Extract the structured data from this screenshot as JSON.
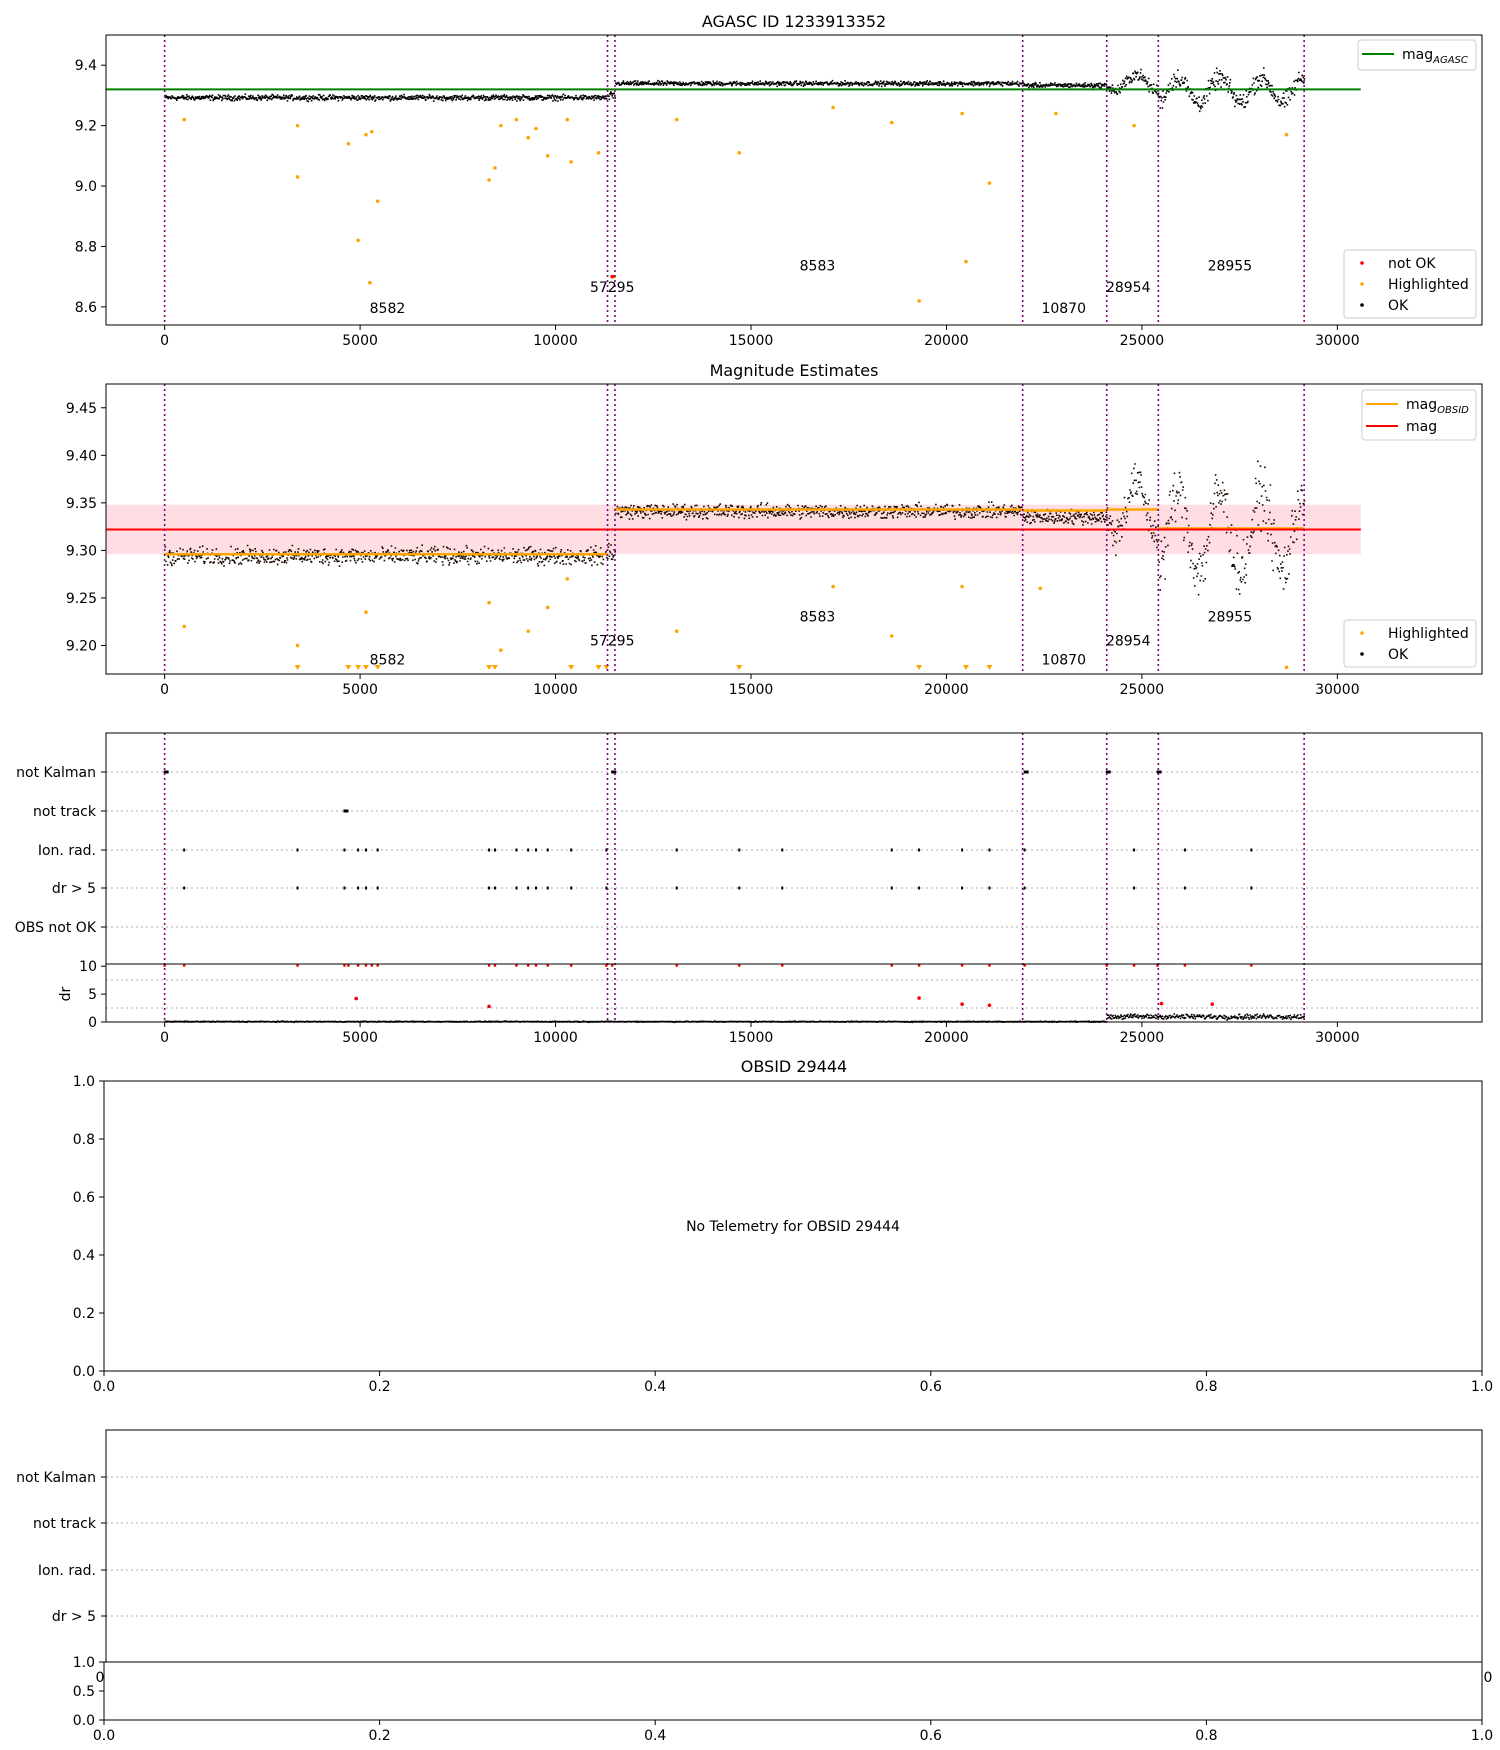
{
  "chart_data": [
    {
      "type": "scatter",
      "title": "AGASC ID 1233913352",
      "xlabel": "",
      "ylabel": "",
      "xlim": [
        -1500,
        33700
      ],
      "ylim": [
        8.54,
        9.5
      ],
      "xticks": [
        0,
        5000,
        10000,
        15000,
        20000,
        25000,
        30000
      ],
      "yticks": [
        8.6,
        8.8,
        9.0,
        9.2,
        9.4
      ],
      "ytick_labels": [
        "8.6",
        "8.8",
        "9.0",
        "9.2",
        "9.4"
      ],
      "obs_boundaries": [
        0,
        11330,
        11520,
        21950,
        24100,
        25420,
        29150
      ],
      "obs_labels": [
        {
          "text": "8582",
          "x": 5700,
          "y": 8.58
        },
        {
          "text": "57295",
          "x": 11450,
          "y": 8.65
        },
        {
          "text": "8583",
          "x": 16700,
          "y": 8.72
        },
        {
          "text": "10870",
          "x": 23000,
          "y": 8.58
        },
        {
          "text": "28954",
          "x": 24650,
          "y": 8.65
        },
        {
          "text": "28955",
          "x": 27250,
          "y": 8.72
        }
      ],
      "reference_line": {
        "name": "mag_AGASC",
        "y": 9.32,
        "x_range": [
          -1500,
          30600
        ],
        "color": "#008000"
      },
      "ok_band_segments": [
        {
          "x0": 0,
          "x1": 11330,
          "center": 9.295,
          "spread": 0.013
        },
        {
          "x0": 11330,
          "x1": 11520,
          "center": 9.3,
          "spread": 0.02
        },
        {
          "x0": 11520,
          "x1": 21950,
          "center": 9.342,
          "spread": 0.011
        },
        {
          "x0": 21950,
          "x1": 24100,
          "center": 9.336,
          "spread": 0.011
        },
        {
          "x0": 24100,
          "x1": 25420,
          "center": 9.345,
          "spread": 0.03
        },
        {
          "x0": 25420,
          "x1": 29150,
          "center": 9.32,
          "spread": 0.045
        }
      ],
      "highlighted_points": [
        [
          500,
          9.22
        ],
        [
          3400,
          9.2
        ],
        [
          3400,
          9.03
        ],
        [
          4700,
          9.14
        ],
        [
          4950,
          8.82
        ],
        [
          5150,
          9.17
        ],
        [
          5250,
          8.68
        ],
        [
          5300,
          9.18
        ],
        [
          5450,
          8.95
        ],
        [
          8300,
          9.02
        ],
        [
          8450,
          9.06
        ],
        [
          8600,
          9.2
        ],
        [
          9000,
          9.22
        ],
        [
          9300,
          9.16
        ],
        [
          9500,
          9.19
        ],
        [
          9800,
          9.1
        ],
        [
          10300,
          9.22
        ],
        [
          10400,
          9.08
        ],
        [
          11100,
          9.11
        ],
        [
          11500,
          8.7
        ],
        [
          13100,
          9.22
        ],
        [
          14700,
          9.11
        ],
        [
          17100,
          9.26
        ],
        [
          18600,
          9.21
        ],
        [
          19300,
          8.62
        ],
        [
          20400,
          9.24
        ],
        [
          20500,
          8.75
        ],
        [
          21100,
          9.01
        ],
        [
          22800,
          9.24
        ],
        [
          24800,
          9.2
        ],
        [
          28700,
          9.17
        ]
      ],
      "not_ok_points": [
        [
          11450,
          8.7
        ]
      ],
      "legend": [
        {
          "name": "mag",
          "sub": "AGASC",
          "color": "#008000",
          "kind": "line"
        },
        {
          "name": "not OK",
          "color": "#ff0000",
          "kind": "dot"
        },
        {
          "name": "Highlighted",
          "color": "#ffa500",
          "kind": "dot"
        },
        {
          "name": "OK",
          "color": "#000000",
          "kind": "dot"
        }
      ],
      "legend_placement": [
        "top-right",
        "bottom-right"
      ]
    },
    {
      "type": "scatter",
      "title": "Magnitude Estimates",
      "xlabel": "",
      "ylabel": "",
      "xlim": [
        -1500,
        33700
      ],
      "ylim": [
        9.17,
        9.475
      ],
      "xticks": [
        0,
        5000,
        10000,
        15000,
        20000,
        25000,
        30000
      ],
      "yticks": [
        9.2,
        9.25,
        9.3,
        9.35,
        9.4,
        9.45
      ],
      "ytick_labels": [
        "9.20",
        "9.25",
        "9.30",
        "9.35",
        "9.40",
        "9.45"
      ],
      "obs_boundaries": [
        0,
        11330,
        11520,
        21950,
        24100,
        25420,
        29150
      ],
      "obs_labels": [
        {
          "text": "8582",
          "x": 5700,
          "y": 9.18
        },
        {
          "text": "57295",
          "x": 11450,
          "y": 9.2
        },
        {
          "text": "8583",
          "x": 16700,
          "y": 9.225
        },
        {
          "text": "10870",
          "x": 23000,
          "y": 9.18
        },
        {
          "text": "28954",
          "x": 24650,
          "y": 9.2
        },
        {
          "text": "28955",
          "x": 27250,
          "y": 9.225
        }
      ],
      "mag_line": {
        "name": "mag",
        "y": 9.322,
        "band": [
          9.296,
          9.348
        ],
        "x_range": [
          -1500,
          30600
        ],
        "color": "#ff0000"
      },
      "mag_obsid_segments": [
        {
          "x0": 0,
          "x1": 11330,
          "y": 9.296
        },
        {
          "x0": 11520,
          "x1": 21950,
          "y": 9.343
        },
        {
          "x0": 21950,
          "x1": 24100,
          "y": 9.342
        },
        {
          "x0": 24100,
          "x1": 25420,
          "y": 9.343
        },
        {
          "x0": 25420,
          "x1": 29150,
          "y": 9.323
        }
      ],
      "ok_band_segments": [
        {
          "x0": 0,
          "x1": 11330,
          "center": 9.295,
          "spread": 0.013
        },
        {
          "x0": 11330,
          "x1": 11520,
          "center": 9.3,
          "spread": 0.02
        },
        {
          "x0": 11520,
          "x1": 21950,
          "center": 9.342,
          "spread": 0.011
        },
        {
          "x0": 21950,
          "x1": 24100,
          "center": 9.336,
          "spread": 0.011
        },
        {
          "x0": 24100,
          "x1": 25420,
          "center": 9.345,
          "spread": 0.03
        },
        {
          "x0": 25420,
          "x1": 29150,
          "center": 9.32,
          "spread": 0.045
        }
      ],
      "highlighted_points": [
        [
          500,
          9.22
        ],
        [
          3400,
          9.2
        ],
        [
          5150,
          9.235
        ],
        [
          8300,
          9.245
        ],
        [
          8600,
          9.195
        ],
        [
          9300,
          9.215
        ],
        [
          9800,
          9.24
        ],
        [
          10300,
          9.27
        ],
        [
          13100,
          9.215
        ],
        [
          17100,
          9.262
        ],
        [
          18600,
          9.21
        ],
        [
          20400,
          9.262
        ],
        [
          22400,
          9.26
        ],
        [
          28700,
          9.177
        ]
      ],
      "lower_limit_markers": [
        3400,
        4700,
        4950,
        5150,
        5450,
        8300,
        8450,
        10400,
        11100,
        11300,
        14700,
        19300,
        20500,
        21100
      ],
      "legend": [
        {
          "name": "mag",
          "sub": "OBSID",
          "color": "#ffa500",
          "kind": "line"
        },
        {
          "name": "mag",
          "color": "#ff0000",
          "kind": "line"
        },
        {
          "name": "Highlighted",
          "color": "#ffa500",
          "kind": "dot"
        },
        {
          "name": "OK",
          "color": "#000000",
          "kind": "dot"
        }
      ],
      "legend_placement": [
        "top-right",
        "bottom-right"
      ]
    },
    {
      "type": "scatter",
      "title": "",
      "xlim": [
        -1500,
        33700
      ],
      "xticks": [
        0,
        5000,
        10000,
        15000,
        20000,
        25000,
        30000
      ],
      "flag_rows": [
        "not Kalman",
        "not track",
        "Ion. rad.",
        "dr > 5",
        "OBS not OK"
      ],
      "flags": {
        "not Kalman": [
          0,
          11450,
          22000,
          24100,
          25400
        ],
        "not track": [
          4600
        ],
        "Ion. rad.": [
          500,
          3400,
          4600,
          4950,
          5150,
          5450,
          8300,
          8450,
          9000,
          9300,
          9500,
          9800,
          10400,
          11300,
          13100,
          14700,
          15800,
          18600,
          19300,
          20400,
          21100,
          22000,
          24800,
          26100,
          27800
        ],
        "dr > 5": [
          500,
          3400,
          4600,
          4950,
          5150,
          5450,
          8300,
          8450,
          9000,
          9300,
          9500,
          9800,
          10400,
          11300,
          13100,
          14700,
          15800,
          18600,
          19300,
          20400,
          21100,
          22000,
          24800,
          26100,
          27800
        ],
        "OBS not OK": []
      },
      "obs_boundaries": [
        0,
        11330,
        11520,
        21950,
        24100,
        25420,
        29150
      ],
      "dr": {
        "ylabel": "dr",
        "ylim": [
          0,
          10.4
        ],
        "yticks": [
          0,
          5,
          10
        ],
        "ok_segments": [
          {
            "x0": 0,
            "x1": 24100,
            "level": 0.2
          },
          {
            "x0": 24100,
            "x1": 29150,
            "level": 1.1
          }
        ],
        "red_points": [
          [
            4900,
            4.2
          ],
          [
            8300,
            2.8
          ],
          [
            19300,
            4.3
          ],
          [
            20400,
            3.2
          ],
          [
            21100,
            3
          ],
          [
            25500,
            3.3
          ],
          [
            26800,
            3.2
          ]
        ],
        "clipped_red_x": [
          0,
          500,
          3400,
          4600,
          4700,
          4950,
          5150,
          5300,
          5450,
          8300,
          8450,
          9000,
          9300,
          9500,
          9800,
          10400,
          11300,
          11450,
          13100,
          14700,
          15800,
          18600,
          19300,
          20400,
          21100,
          22000,
          24100,
          24800,
          25400,
          26100,
          27800
        ]
      }
    },
    {
      "type": "scatter",
      "title": "OBSID 29444",
      "xlim": [
        0,
        1
      ],
      "ylim": [
        0,
        1
      ],
      "xticks": [
        0,
        0.2,
        0.4,
        0.6,
        0.8,
        1.0
      ],
      "yticks": [
        0,
        0.2,
        0.4,
        0.6,
        0.8,
        1.0
      ],
      "tick_labels": [
        "0.0",
        "0.2",
        "0.4",
        "0.6",
        "0.8",
        "1.0"
      ],
      "message": "No Telemetry for OBSID 29444"
    },
    {
      "type": "scatter",
      "title": "",
      "xlim": [
        0,
        1
      ],
      "flag_rows": [
        "not Kalman",
        "not track",
        "Ion. rad.",
        "dr > 5"
      ],
      "hidden_tick_fragments": [
        "0",
        "0"
      ],
      "sub": {
        "ylim": [
          0,
          1
        ],
        "yticks": [
          0,
          0.5,
          1.0
        ],
        "ytick_labels": [
          "0.0",
          "0.5",
          "1.0"
        ],
        "xticks": [
          0,
          0.2,
          0.4,
          0.6,
          0.8,
          1.0
        ],
        "xtick_labels": [
          "0.0",
          "0.2",
          "0.4",
          "0.6",
          "0.8",
          "1.0"
        ]
      }
    }
  ]
}
